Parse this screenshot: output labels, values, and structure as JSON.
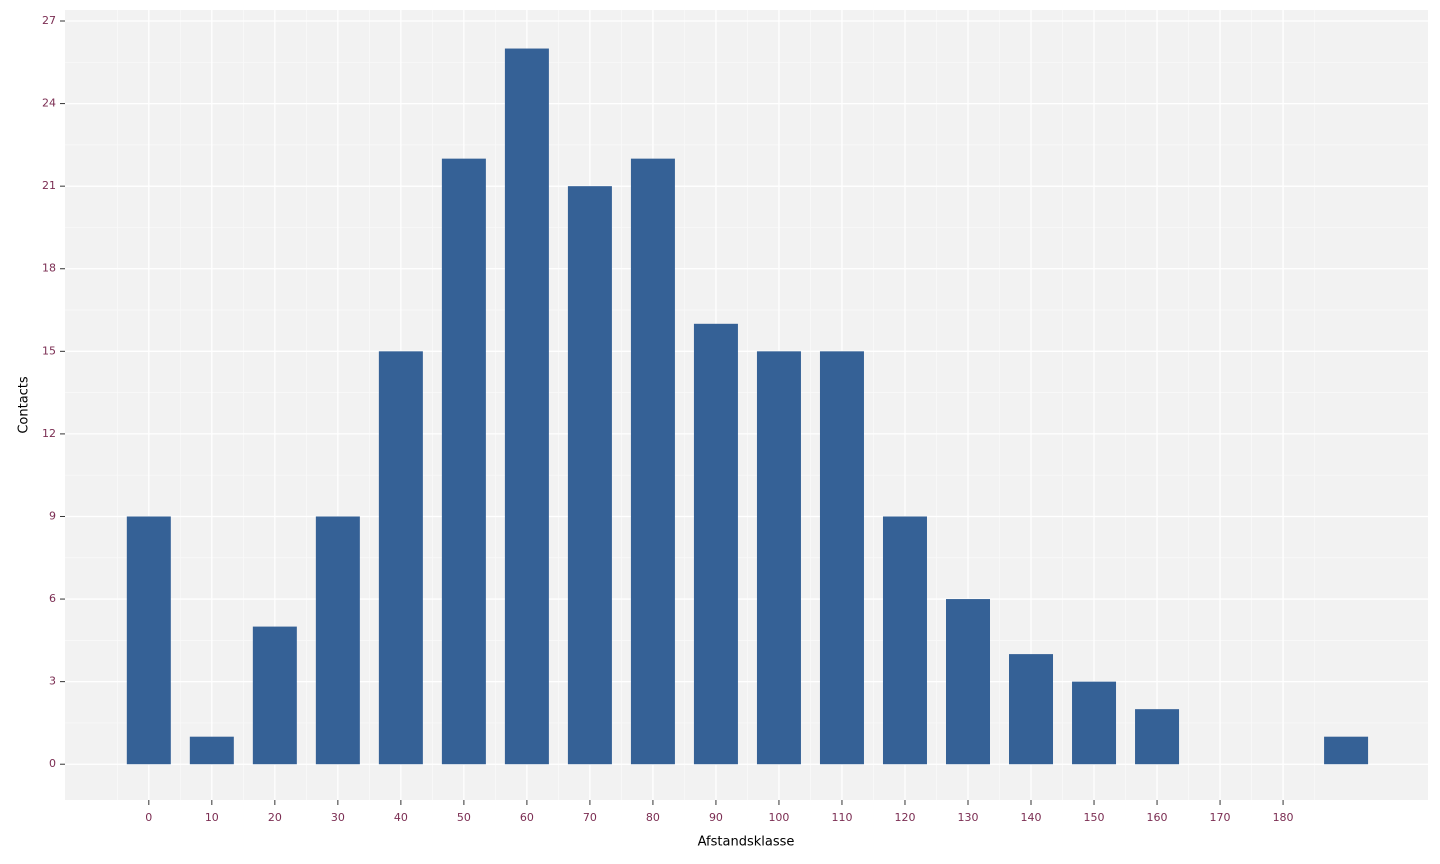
{
  "chart_data": {
    "type": "bar",
    "x_label": "Afstandsklasse",
    "y_label": "Contacts",
    "x": [
      0,
      10,
      20,
      30,
      40,
      50,
      60,
      70,
      80,
      90,
      100,
      110,
      120,
      130,
      140,
      150,
      160,
      190
    ],
    "values": [
      9,
      1,
      5,
      9,
      15,
      22,
      26,
      21,
      22,
      16,
      15,
      15,
      9,
      6,
      4,
      3,
      2,
      1
    ],
    "color": "#356196",
    "xlim": [
      -13.3,
      203
    ],
    "xticks": [
      0,
      10,
      20,
      30,
      40,
      50,
      60,
      70,
      80,
      90,
      100,
      110,
      120,
      130,
      140,
      150,
      160,
      170,
      180
    ],
    "ylim": [
      -1.3,
      27.4
    ],
    "yticks": [
      0,
      3,
      6,
      9,
      12,
      15,
      18,
      21,
      24,
      27
    ],
    "grid": true
  }
}
